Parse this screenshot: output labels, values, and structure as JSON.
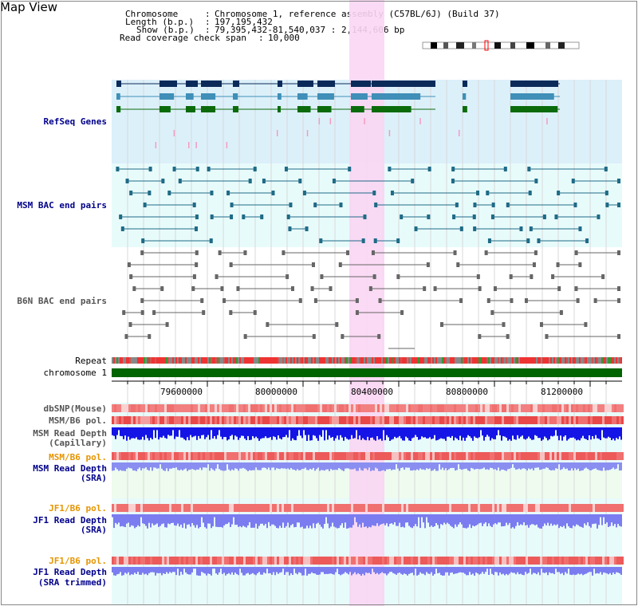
{
  "title": "Map View",
  "info": {
    "chromosome_label": "Chromosome",
    "chromosome_value": "Chromosome 1, reference assembly (C57BL/6J) (Build 37)",
    "length_label": "Length (b.p.)",
    "length_value": "197,195,432",
    "show_label": "Show (b.p.)",
    "show_value": "79,395,432-81,540,037 : 2,144,606 bp",
    "coverage_label": "Read coverage check span",
    "coverage_value": "10,000"
  },
  "tracks": {
    "refseq": "RefSeq Genes",
    "msm_bac": "MSM BAC end pairs",
    "b6n_bac": "B6N BAC end pairs",
    "repeat": "Repeat",
    "chromosome": "chromosome 1",
    "dbsnp": "dbSNP(Mouse)",
    "msm_b6_pol": "MSM/B6 pol.",
    "msm_depth_cap_1": "MSM Read Depth",
    "msm_depth_cap_2": "(Capillary)",
    "msm_b6_pol_2": "MSM/B6 pol.",
    "msm_depth_sra_1": "MSM Read Depth",
    "msm_depth_sra_2": "(SRA)",
    "jf1_b6_pol": "JF1/B6 pol.",
    "jf1_depth_sra_1": "JF1 Read Depth",
    "jf1_depth_sra_2": "(SRA)",
    "jf1_b6_pol_2": "JF1/B6 pol.",
    "jf1_depth_trim_1": "JF1 Read Depth",
    "jf1_depth_trim_2": "(SRA trimmed)"
  },
  "axis": {
    "ticks": [
      "79600000",
      "80000000",
      "80400000",
      "80800000",
      "81200000"
    ]
  },
  "colors": {
    "refseq_bg": "#dcf0fa",
    "msm_bg": "#e8fbfb",
    "highlight": "#f9d6f3",
    "chromosome_bar": "#006400",
    "track_label_blue": "#00008b",
    "track_label_orange": "#e69500"
  }
}
